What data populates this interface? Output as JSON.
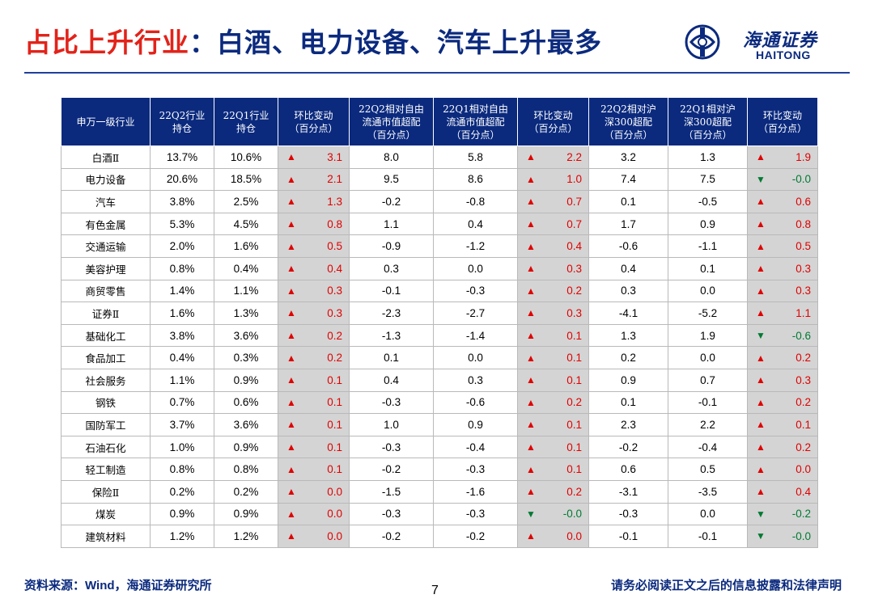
{
  "header": {
    "title_accent": "占比上升行业",
    "title_rest": "：白酒、电力设备、汽车上升最多",
    "logo_cn": "海通证券",
    "logo_en": "HAITONG"
  },
  "colors": {
    "navy": "#0b2a7e",
    "red": "#e2231a",
    "up": "#e00000",
    "down": "#007a33",
    "change_bg": "#d4d4d4"
  },
  "table": {
    "headers": [
      [
        "申万一级行业"
      ],
      [
        "22Q2行业",
        "持仓"
      ],
      [
        "22Q1行业",
        "持仓"
      ],
      [
        "环比变动",
        "（百分点）"
      ],
      [
        "22Q2相对自由",
        "流通市值超配",
        "（百分点）"
      ],
      [
        "22Q1相对自由",
        "流通市值超配",
        "（百分点）"
      ],
      [
        "环比变动",
        "（百分点）"
      ],
      [
        "22Q2相对沪",
        "深300超配",
        "（百分点）"
      ],
      [
        "22Q1相对沪",
        "深300超配",
        "（百分点）"
      ],
      [
        "环比变动",
        "（百分点）"
      ]
    ],
    "rows": [
      {
        "name": "白酒Ⅱ",
        "q2": "13.7%",
        "q1": "10.6%",
        "c1": "3.1",
        "c1d": "up",
        "f2": "8.0",
        "f1": "5.8",
        "c2": "2.2",
        "c2d": "up",
        "h2": "3.2",
        "h1": "1.3",
        "c3": "1.9",
        "c3d": "up"
      },
      {
        "name": "电力设备",
        "q2": "20.6%",
        "q1": "18.5%",
        "c1": "2.1",
        "c1d": "up",
        "f2": "9.5",
        "f1": "8.6",
        "c2": "1.0",
        "c2d": "up",
        "h2": "7.4",
        "h1": "7.5",
        "c3": "-0.0",
        "c3d": "down"
      },
      {
        "name": "汽车",
        "q2": "3.8%",
        "q1": "2.5%",
        "c1": "1.3",
        "c1d": "up",
        "f2": "-0.2",
        "f1": "-0.8",
        "c2": "0.7",
        "c2d": "up",
        "h2": "0.1",
        "h1": "-0.5",
        "c3": "0.6",
        "c3d": "up"
      },
      {
        "name": "有色金属",
        "q2": "5.3%",
        "q1": "4.5%",
        "c1": "0.8",
        "c1d": "up",
        "f2": "1.1",
        "f1": "0.4",
        "c2": "0.7",
        "c2d": "up",
        "h2": "1.7",
        "h1": "0.9",
        "c3": "0.8",
        "c3d": "up"
      },
      {
        "name": "交通运输",
        "q2": "2.0%",
        "q1": "1.6%",
        "c1": "0.5",
        "c1d": "up",
        "f2": "-0.9",
        "f1": "-1.2",
        "c2": "0.4",
        "c2d": "up",
        "h2": "-0.6",
        "h1": "-1.1",
        "c3": "0.5",
        "c3d": "up"
      },
      {
        "name": "美容护理",
        "q2": "0.8%",
        "q1": "0.4%",
        "c1": "0.4",
        "c1d": "up",
        "f2": "0.3",
        "f1": "0.0",
        "c2": "0.3",
        "c2d": "up",
        "h2": "0.4",
        "h1": "0.1",
        "c3": "0.3",
        "c3d": "up"
      },
      {
        "name": "商贸零售",
        "q2": "1.4%",
        "q1": "1.1%",
        "c1": "0.3",
        "c1d": "up",
        "f2": "-0.1",
        "f1": "-0.3",
        "c2": "0.2",
        "c2d": "up",
        "h2": "0.3",
        "h1": "0.0",
        "c3": "0.3",
        "c3d": "up"
      },
      {
        "name": "证券Ⅱ",
        "q2": "1.6%",
        "q1": "1.3%",
        "c1": "0.3",
        "c1d": "up",
        "f2": "-2.3",
        "f1": "-2.7",
        "c2": "0.3",
        "c2d": "up",
        "h2": "-4.1",
        "h1": "-5.2",
        "c3": "1.1",
        "c3d": "up"
      },
      {
        "name": "基础化工",
        "q2": "3.8%",
        "q1": "3.6%",
        "c1": "0.2",
        "c1d": "up",
        "f2": "-1.3",
        "f1": "-1.4",
        "c2": "0.1",
        "c2d": "up",
        "h2": "1.3",
        "h1": "1.9",
        "c3": "-0.6",
        "c3d": "down"
      },
      {
        "name": "食品加工",
        "q2": "0.4%",
        "q1": "0.3%",
        "c1": "0.2",
        "c1d": "up",
        "f2": "0.1",
        "f1": "0.0",
        "c2": "0.1",
        "c2d": "up",
        "h2": "0.2",
        "h1": "0.0",
        "c3": "0.2",
        "c3d": "up"
      },
      {
        "name": "社会服务",
        "q2": "1.1%",
        "q1": "0.9%",
        "c1": "0.1",
        "c1d": "up",
        "f2": "0.4",
        "f1": "0.3",
        "c2": "0.1",
        "c2d": "up",
        "h2": "0.9",
        "h1": "0.7",
        "c3": "0.3",
        "c3d": "up"
      },
      {
        "name": "钢铁",
        "q2": "0.7%",
        "q1": "0.6%",
        "c1": "0.1",
        "c1d": "up",
        "f2": "-0.3",
        "f1": "-0.6",
        "c2": "0.2",
        "c2d": "up",
        "h2": "0.1",
        "h1": "-0.1",
        "c3": "0.2",
        "c3d": "up"
      },
      {
        "name": "国防军工",
        "q2": "3.7%",
        "q1": "3.6%",
        "c1": "0.1",
        "c1d": "up",
        "f2": "1.0",
        "f1": "0.9",
        "c2": "0.1",
        "c2d": "up",
        "h2": "2.3",
        "h1": "2.2",
        "c3": "0.1",
        "c3d": "up"
      },
      {
        "name": "石油石化",
        "q2": "1.0%",
        "q1": "0.9%",
        "c1": "0.1",
        "c1d": "up",
        "f2": "-0.3",
        "f1": "-0.4",
        "c2": "0.1",
        "c2d": "up",
        "h2": "-0.2",
        "h1": "-0.4",
        "c3": "0.2",
        "c3d": "up"
      },
      {
        "name": "轻工制造",
        "q2": "0.8%",
        "q1": "0.8%",
        "c1": "0.1",
        "c1d": "up",
        "f2": "-0.2",
        "f1": "-0.3",
        "c2": "0.1",
        "c2d": "up",
        "h2": "0.6",
        "h1": "0.5",
        "c3": "0.0",
        "c3d": "up"
      },
      {
        "name": "保险Ⅱ",
        "q2": "0.2%",
        "q1": "0.2%",
        "c1": "0.0",
        "c1d": "up",
        "f2": "-1.5",
        "f1": "-1.6",
        "c2": "0.2",
        "c2d": "up",
        "h2": "-3.1",
        "h1": "-3.5",
        "c3": "0.4",
        "c3d": "up"
      },
      {
        "name": "煤炭",
        "q2": "0.9%",
        "q1": "0.9%",
        "c1": "0.0",
        "c1d": "up",
        "f2": "-0.3",
        "f1": "-0.3",
        "c2": "-0.0",
        "c2d": "down",
        "h2": "-0.3",
        "h1": "0.0",
        "c3": "-0.2",
        "c3d": "down"
      },
      {
        "name": "建筑材料",
        "q2": "1.2%",
        "q1": "1.2%",
        "c1": "0.0",
        "c1d": "up",
        "f2": "-0.2",
        "f1": "-0.2",
        "c2": "0.0",
        "c2d": "up",
        "h2": "-0.1",
        "h1": "-0.1",
        "c3": "-0.0",
        "c3d": "down"
      }
    ]
  },
  "footer": {
    "source_label": "资料来源：",
    "source_wind": "Wind",
    "source_rest": "，海通证券研究所",
    "page": "7",
    "disclaimer": "请务必阅读正文之后的信息披露和法律声明"
  }
}
